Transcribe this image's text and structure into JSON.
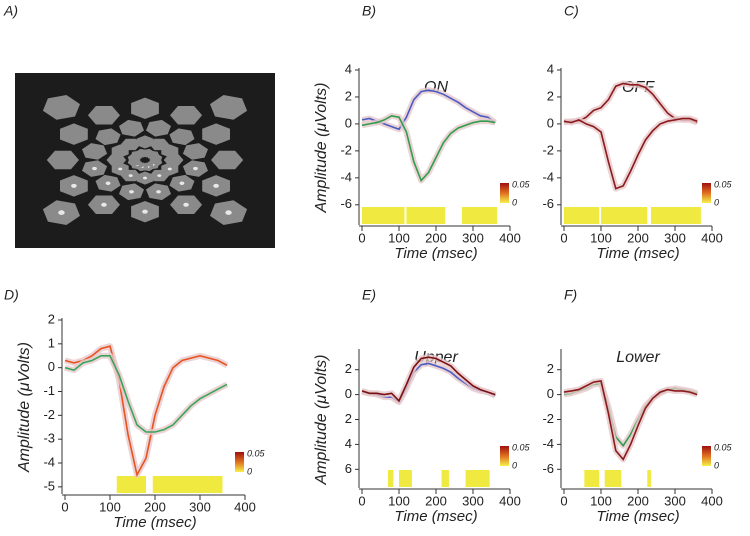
{
  "panel_a_label": "A)",
  "chart_data": [
    {
      "type": "line",
      "panel": "B)",
      "title": "ON",
      "ylabel": "Amplitude (μVolts)",
      "xlabel": "Time (msec)",
      "x": [
        0,
        20,
        40,
        60,
        80,
        100,
        120,
        140,
        160,
        180,
        200,
        220,
        240,
        260,
        280,
        300,
        320,
        340,
        360
      ],
      "series": [
        {
          "color": "#4a5cc4",
          "values": [
            0.3,
            0.4,
            0.2,
            0,
            -0.2,
            -0.4,
            0.5,
            1.8,
            2.4,
            2.5,
            2.4,
            2.2,
            1.9,
            1.6,
            1.2,
            0.9,
            0.6,
            0.5,
            0.1
          ]
        },
        {
          "color": "#2e9e4a",
          "values": [
            -0.1,
            0,
            0.1,
            0.3,
            0.6,
            0.5,
            -0.6,
            -2.8,
            -4.2,
            -3.6,
            -2.5,
            -1.4,
            -0.7,
            -0.3,
            -0.1,
            0.1,
            0.2,
            0.2,
            0.1
          ]
        }
      ],
      "xlim": [
        0,
        400
      ],
      "ylim": [
        -7.5,
        4
      ],
      "xticks": [
        0,
        100,
        200,
        300,
        400
      ],
      "yticks": [
        4,
        2,
        0,
        -2,
        -4,
        -6
      ],
      "sig_intervals": [
        [
          0,
          115
        ],
        [
          120,
          225
        ],
        [
          270,
          365
        ]
      ],
      "colorbar_labels": [
        "0.05",
        "0"
      ]
    },
    {
      "type": "line",
      "panel": "C)",
      "title": "OFF",
      "xlabel": "Time (msec)",
      "x": [
        0,
        20,
        40,
        60,
        80,
        100,
        120,
        140,
        160,
        180,
        200,
        220,
        240,
        260,
        280,
        300,
        320,
        340,
        360
      ],
      "series": [
        {
          "color": "#8b1a1a",
          "values": [
            0.1,
            0.2,
            0.2,
            0.5,
            1.0,
            1.2,
            1.8,
            2.8,
            3.0,
            2.9,
            2.9,
            2.7,
            2.2,
            1.5,
            0.8,
            0.4,
            0.3,
            0.3,
            0.1
          ]
        },
        {
          "color": "#8b1a1a",
          "values": [
            0.2,
            0.1,
            0.3,
            0,
            -0.2,
            -0.6,
            -2.8,
            -4.8,
            -4.6,
            -3.5,
            -2.3,
            -1.2,
            -0.5,
            0,
            0.2,
            0.3,
            0.4,
            0.4,
            0.2
          ]
        }
      ],
      "xlim": [
        0,
        400
      ],
      "ylim": [
        -7.5,
        4
      ],
      "xticks": [
        0,
        100,
        200,
        300,
        400
      ],
      "yticks": [
        4,
        2,
        0,
        -2,
        -4,
        -6
      ],
      "sig_intervals": [
        [
          0,
          95
        ],
        [
          100,
          225
        ],
        [
          235,
          370
        ]
      ],
      "colorbar_labels": [
        "0.05",
        "0"
      ]
    },
    {
      "type": "line",
      "panel": "D)",
      "ylabel": "Amplitude (μVolts)",
      "xlabel": "Time (msec)",
      "x": [
        0,
        20,
        40,
        60,
        80,
        100,
        120,
        140,
        160,
        180,
        200,
        220,
        240,
        260,
        280,
        300,
        320,
        340,
        360
      ],
      "series": [
        {
          "color": "#e8531f",
          "values": [
            0.3,
            0.2,
            0.3,
            0.5,
            0.8,
            0.9,
            -0.5,
            -2.8,
            -4.5,
            -3.8,
            -2,
            -0.8,
            0,
            0.3,
            0.4,
            0.5,
            0.4,
            0.3,
            0.1
          ]
        },
        {
          "color": "#3aa55a",
          "values": [
            0,
            -0.1,
            0.2,
            0.3,
            0.5,
            0.5,
            -0.3,
            -1.4,
            -2.4,
            -2.7,
            -2.7,
            -2.6,
            -2.4,
            -2.0,
            -1.6,
            -1.3,
            -1.1,
            -0.9,
            -0.7
          ]
        }
      ],
      "xlim": [
        0,
        400
      ],
      "ylim": [
        -5.3,
        2
      ],
      "xticks": [
        0,
        100,
        200,
        300,
        400
      ],
      "yticks": [
        2,
        1,
        0,
        -1,
        -2,
        -3,
        -4,
        -5
      ],
      "sig_intervals": [
        [
          115,
          180
        ],
        [
          195,
          350
        ]
      ],
      "colorbar_labels": [
        "0.05",
        "0"
      ]
    },
    {
      "type": "line",
      "panel": "E)",
      "title": "Upper",
      "ylabel": "Amplitude (μVolts)",
      "xlabel": "Time (msec)",
      "x": [
        0,
        20,
        40,
        60,
        80,
        100,
        120,
        140,
        160,
        180,
        200,
        220,
        240,
        260,
        280,
        300,
        320,
        340,
        360
      ],
      "series": [
        {
          "color": "#4a5cc4",
          "values": [
            0.2,
            0.1,
            0,
            -0.2,
            -0.2,
            -0.6,
            0.5,
            1.8,
            2.4,
            2.5,
            2.3,
            2.1,
            1.8,
            1.3,
            0.9,
            0.5,
            0.3,
            0.2,
            -0.1
          ]
        },
        {
          "color": "#7a1010",
          "values": [
            0.3,
            0.1,
            0.1,
            0,
            0.1,
            -0.5,
            0.8,
            2.2,
            2.9,
            3.0,
            2.9,
            2.6,
            2.3,
            1.7,
            1.2,
            0.7,
            0.4,
            0.2,
            0
          ]
        }
      ],
      "xlim": [
        0,
        400
      ],
      "ylim": [
        -7.5,
        3.5
      ],
      "xticks": [
        0,
        100,
        200,
        300,
        400
      ],
      "yticks": [
        2,
        0,
        {
          "value": -2,
          "label": "2"
        },
        {
          "value": -4,
          "label": "4"
        },
        {
          "value": -6,
          "label": "6"
        }
      ],
      "sig_intervals": [
        [
          70,
          85
        ],
        [
          100,
          135
        ],
        [
          215,
          235
        ],
        [
          280,
          345
        ]
      ],
      "colorbar_labels": [
        "0.05",
        "0"
      ]
    },
    {
      "type": "line",
      "panel": "F)",
      "title": "Lower",
      "xlabel": "Time (msec)",
      "x": [
        0,
        20,
        40,
        60,
        80,
        100,
        120,
        140,
        160,
        180,
        200,
        220,
        240,
        260,
        280,
        300,
        320,
        340,
        360
      ],
      "series": [
        {
          "color": "#2e9e4a",
          "values": [
            0,
            0.1,
            0.3,
            0.5,
            0.8,
            0.9,
            -1,
            -3.4,
            -4.1,
            -3.2,
            -2,
            -0.9,
            -0.3,
            0.1,
            0.4,
            0.5,
            0.4,
            0.3,
            0.1
          ]
        },
        {
          "color": "#8b1a1a",
          "values": [
            0.2,
            0.3,
            0.4,
            0.7,
            1.0,
            1.1,
            -1.5,
            -4.5,
            -5.2,
            -4,
            -2.5,
            -1.1,
            -0.3,
            0.2,
            0.4,
            0.3,
            0.3,
            0.2,
            0
          ]
        }
      ],
      "xlim": [
        0,
        400
      ],
      "ylim": [
        -7.5,
        3.5
      ],
      "xticks": [
        0,
        100,
        200,
        300,
        400
      ],
      "yticks": [
        2,
        0,
        -2,
        -4,
        -6
      ],
      "sig_intervals": [
        [
          55,
          95
        ],
        [
          110,
          155
        ],
        [
          225,
          235
        ]
      ],
      "colorbar_labels": [
        "0.05",
        "0"
      ]
    }
  ]
}
